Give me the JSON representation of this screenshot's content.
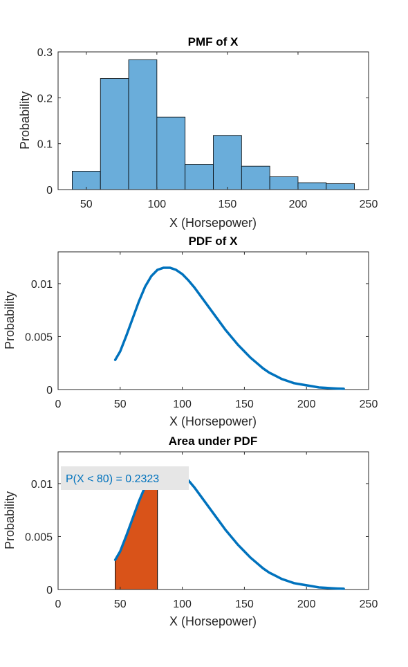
{
  "colors": {
    "bar_fill": "#6AADDA",
    "bar_edge": "#000000",
    "line": "#0072BD",
    "area_fill": "#D95319",
    "annotation_bg": "#E6E6E6",
    "annotation_text": "#0072BD"
  },
  "chart_data": [
    {
      "type": "bar",
      "title": "PMF of X",
      "xlabel": "X (Horsepower)",
      "ylabel": "Probability",
      "bin_edges": [
        40,
        60,
        80,
        100,
        120,
        140,
        160,
        180,
        200,
        220,
        240
      ],
      "values": [
        0.04,
        0.242,
        0.283,
        0.158,
        0.055,
        0.118,
        0.051,
        0.028,
        0.015,
        0.013
      ],
      "xlim": [
        30,
        250
      ],
      "ylim": [
        0,
        0.3
      ],
      "xticks": [
        50,
        100,
        150,
        200,
        250
      ],
      "xtick_labels": [
        "50",
        "100",
        "150",
        "200",
        "250"
      ],
      "yticks": [
        0,
        0.1,
        0.2,
        0.3
      ],
      "ytick_labels": [
        "0",
        "0.1",
        "0.2",
        "0.3"
      ],
      "grid": false
    },
    {
      "type": "line",
      "title": "PDF of X",
      "xlabel": "X (Horsepower)",
      "ylabel": "Probability",
      "x": [
        46,
        50,
        55,
        60,
        65,
        70,
        75,
        80,
        85,
        90,
        95,
        100,
        105,
        110,
        115,
        120,
        125,
        130,
        135,
        140,
        145,
        150,
        155,
        160,
        165,
        170,
        175,
        180,
        185,
        190,
        195,
        200,
        205,
        210,
        215,
        220,
        225,
        230
      ],
      "y": [
        0.0028,
        0.0036,
        0.0051,
        0.0067,
        0.0083,
        0.0097,
        0.0107,
        0.0113,
        0.0115,
        0.0115,
        0.0113,
        0.0109,
        0.0103,
        0.0096,
        0.0088,
        0.008,
        0.0072,
        0.0064,
        0.0056,
        0.0049,
        0.0042,
        0.0036,
        0.003,
        0.0025,
        0.002,
        0.0016,
        0.0013,
        0.001,
        0.0008,
        0.0006,
        0.0005,
        0.0004,
        0.0003,
        0.0002,
        0.00016,
        0.00012,
        9e-05,
        7e-05
      ],
      "xlim": [
        0,
        250
      ],
      "ylim": [
        0,
        0.013
      ],
      "xticks": [
        0,
        50,
        100,
        150,
        200,
        250
      ],
      "xtick_labels": [
        "0",
        "50",
        "100",
        "150",
        "200",
        "250"
      ],
      "yticks": [
        0,
        0.005,
        0.01
      ],
      "ytick_labels": [
        "0",
        "0.005",
        "0.01"
      ],
      "grid": false
    },
    {
      "type": "area",
      "title": "Area under PDF",
      "xlabel": "X (Horsepower)",
      "ylabel": "Probability",
      "x": [
        46,
        50,
        55,
        60,
        65,
        70,
        75,
        80,
        85,
        90,
        95,
        100,
        105,
        110,
        115,
        120,
        125,
        130,
        135,
        140,
        145,
        150,
        155,
        160,
        165,
        170,
        175,
        180,
        185,
        190,
        195,
        200,
        205,
        210,
        215,
        220,
        225,
        230
      ],
      "y": [
        0.0028,
        0.0036,
        0.0051,
        0.0067,
        0.0083,
        0.0097,
        0.0107,
        0.0113,
        0.0115,
        0.0115,
        0.0113,
        0.0109,
        0.0103,
        0.0096,
        0.0088,
        0.008,
        0.0072,
        0.0064,
        0.0056,
        0.0049,
        0.0042,
        0.0036,
        0.003,
        0.0025,
        0.002,
        0.0016,
        0.0013,
        0.001,
        0.0008,
        0.0006,
        0.0005,
        0.0004,
        0.0003,
        0.0002,
        0.00016,
        0.00012,
        9e-05,
        7e-05
      ],
      "shaded_region": {
        "from": 46,
        "to": 80
      },
      "annotation": "P(X < 80) = 0.2323",
      "xlim": [
        0,
        250
      ],
      "ylim": [
        0,
        0.013
      ],
      "xticks": [
        0,
        50,
        100,
        150,
        200,
        250
      ],
      "xtick_labels": [
        "0",
        "50",
        "100",
        "150",
        "200",
        "250"
      ],
      "yticks": [
        0,
        0.005,
        0.01
      ],
      "ytick_labels": [
        "0",
        "0.005",
        "0.01"
      ],
      "grid": false
    }
  ]
}
